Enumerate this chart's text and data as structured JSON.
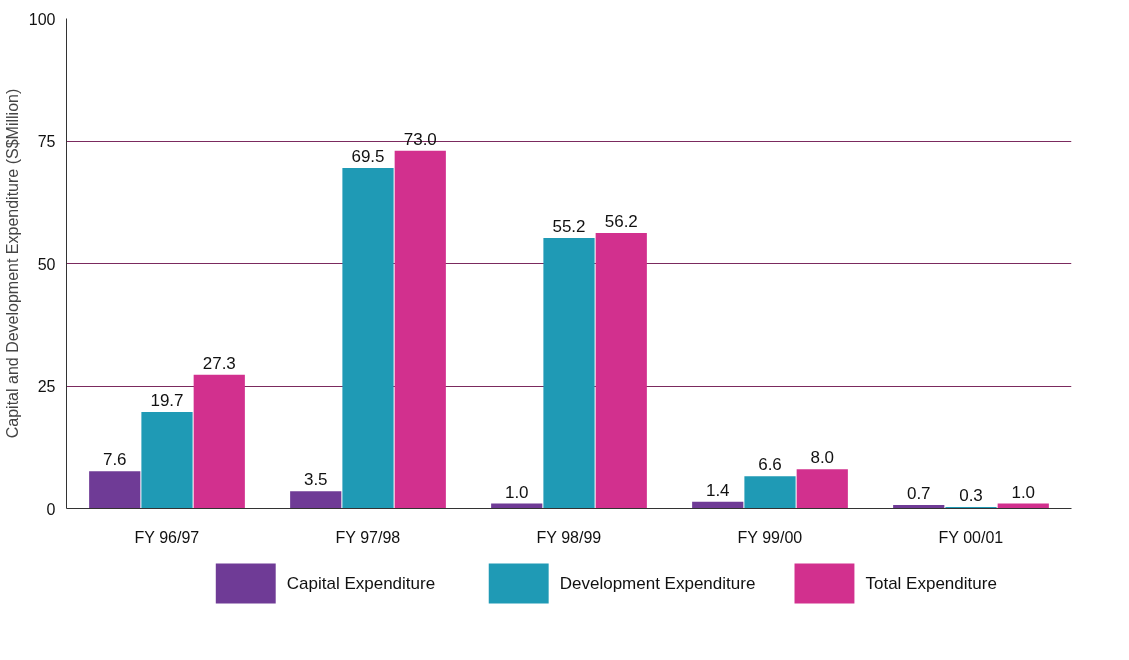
{
  "chart_data": {
    "type": "bar",
    "ylabel": "Capital and Development Expenditure (S$Million)",
    "categories": [
      "FY 96/97",
      "FY 97/98",
      "FY 98/99",
      "FY 99/00",
      "FY 00/01"
    ],
    "series": [
      {
        "name": "Capital Expenditure",
        "color": "#6f3b96",
        "values": [
          7.6,
          3.5,
          1.0,
          1.4,
          0.7
        ],
        "value_labels": [
          "7.6",
          "3.5",
          "1.0",
          "1.4",
          "0.7"
        ]
      },
      {
        "name": "Development Expenditure",
        "color": "#1f9ab5",
        "values": [
          19.7,
          69.5,
          55.2,
          6.6,
          0.3
        ],
        "value_labels": [
          "19.7",
          "69.5",
          "55.2",
          "6.6",
          "0.3"
        ]
      },
      {
        "name": "Total Expenditure",
        "color": "#d2308e",
        "values": [
          27.3,
          73.0,
          56.2,
          8.0,
          1.0
        ],
        "value_labels": [
          "27.3",
          "73.0",
          "56.2",
          "8.0",
          "1.0"
        ]
      }
    ],
    "ylim": [
      0,
      100
    ],
    "yticks": [
      0,
      25,
      50,
      75,
      100
    ],
    "grid": "y",
    "legend": "bottom"
  }
}
